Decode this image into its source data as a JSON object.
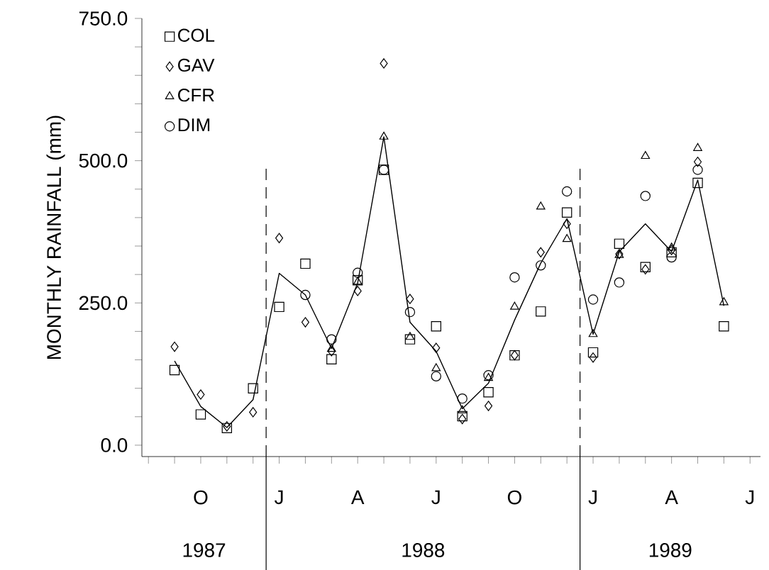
{
  "chart_data": {
    "type": "scatter",
    "ylabel": "MONTHLY RAINFALL (mm)",
    "categories": [
      null,
      null,
      "O",
      null,
      null,
      "J",
      null,
      null,
      "A",
      null,
      null,
      "J",
      null,
      null,
      "O",
      null,
      null,
      "J",
      null,
      null,
      "A",
      null,
      null,
      "J"
    ],
    "series": [
      {
        "name": "COL",
        "color": "#000000",
        "marker": "square",
        "values": [
          null,
          132,
          54,
          30,
          100,
          243,
          319,
          151,
          290,
          484,
          186,
          209,
          51,
          93,
          158,
          235,
          409,
          163,
          354,
          313,
          339,
          461,
          209,
          null
        ]
      },
      {
        "name": "GAV",
        "color": "#000000",
        "marker": "diamond",
        "values": [
          null,
          173,
          89,
          33,
          58,
          364,
          216,
          165,
          271,
          671,
          257,
          171,
          46,
          69,
          158,
          339,
          389,
          154,
          336,
          309,
          343,
          498,
          null,
          null
        ]
      },
      {
        "name": "CFR",
        "color": "#000000",
        "marker": "triangle",
        "values": [
          null,
          null,
          null,
          null,
          null,
          null,
          null,
          169,
          287,
          542,
          190,
          135,
          61,
          118,
          243,
          419,
          362,
          195,
          334,
          508,
          347,
          522,
          251,
          null
        ]
      },
      {
        "name": "DIM",
        "color": "#000000",
        "marker": "circle",
        "values": [
          null,
          null,
          null,
          null,
          null,
          null,
          264,
          186,
          303,
          484,
          234,
          121,
          82,
          123,
          295,
          316,
          446,
          256,
          286,
          438,
          330,
          484,
          null,
          null
        ]
      },
      {
        "type": "line",
        "color": "#000000",
        "line_style": "solid",
        "values": [
          null,
          148,
          68,
          31,
          80,
          302,
          264,
          170,
          285,
          542,
          216,
          165,
          64,
          109,
          220,
          320,
          398,
          195,
          340,
          389,
          340,
          466,
          245,
          null
        ]
      }
    ],
    "ylim": [
      -20,
      750
    ],
    "yticks": [
      {
        "value": 0,
        "label": "0.0"
      },
      {
        "value": 50,
        "label": null
      },
      {
        "value": 100,
        "label": null
      },
      {
        "value": 150,
        "label": null
      },
      {
        "value": 200,
        "label": null
      },
      {
        "value": 250,
        "label": "250.0"
      },
      {
        "value": 300,
        "label": null
      },
      {
        "value": 350,
        "label": null
      },
      {
        "value": 400,
        "label": null
      },
      {
        "value": 450,
        "label": null
      },
      {
        "value": 500,
        "label": "500.0"
      },
      {
        "value": 550,
        "label": null
      },
      {
        "value": 600,
        "label": null
      },
      {
        "value": 650,
        "label": null
      },
      {
        "value": 700,
        "label": null
      },
      {
        "value": 750,
        "label": "750.0"
      }
    ],
    "annotations": [
      "1987",
      "1988",
      "1989"
    ],
    "legend": "top left",
    "grid": false
  }
}
